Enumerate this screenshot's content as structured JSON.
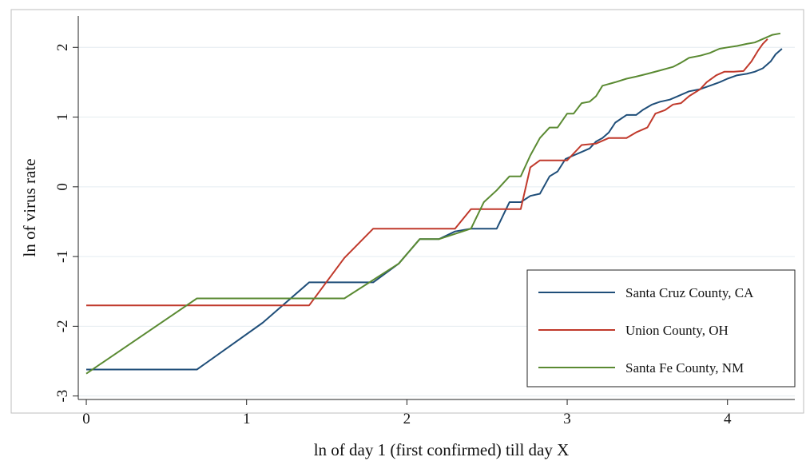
{
  "chart_data": {
    "type": "line",
    "title": "",
    "xlabel": "ln of day 1 (first confirmed) till day X",
    "ylabel": "ln of virus rate",
    "xlim": [
      -0.05,
      4.42
    ],
    "ylim": [
      -3.05,
      2.45
    ],
    "xticks": [
      0,
      1,
      2,
      3,
      4
    ],
    "yticks": [
      -3,
      -2,
      -1,
      0,
      1,
      2
    ],
    "grid": "horizontal",
    "legend": "bottom-right",
    "series": [
      {
        "name": "Santa Cruz County, CA",
        "color": "#1f4e79",
        "points": [
          [
            0,
            -2.62
          ],
          [
            0.69,
            -2.62
          ],
          [
            1.1,
            -1.95
          ],
          [
            1.39,
            -1.37
          ],
          [
            1.79,
            -1.37
          ],
          [
            1.95,
            -1.1
          ],
          [
            2.08,
            -0.75
          ],
          [
            2.2,
            -0.75
          ],
          [
            2.3,
            -0.64
          ],
          [
            2.4,
            -0.6
          ],
          [
            2.56,
            -0.6
          ],
          [
            2.64,
            -0.22
          ],
          [
            2.71,
            -0.22
          ],
          [
            2.77,
            -0.13
          ],
          [
            2.83,
            -0.1
          ],
          [
            2.89,
            0.15
          ],
          [
            2.94,
            0.22
          ],
          [
            2.99,
            0.4
          ],
          [
            3.04,
            0.45
          ],
          [
            3.09,
            0.5
          ],
          [
            3.14,
            0.55
          ],
          [
            3.18,
            0.65
          ],
          [
            3.22,
            0.7
          ],
          [
            3.26,
            0.78
          ],
          [
            3.3,
            0.92
          ],
          [
            3.37,
            1.03
          ],
          [
            3.43,
            1.03
          ],
          [
            3.47,
            1.1
          ],
          [
            3.53,
            1.18
          ],
          [
            3.58,
            1.22
          ],
          [
            3.64,
            1.25
          ],
          [
            3.69,
            1.3
          ],
          [
            3.76,
            1.37
          ],
          [
            3.83,
            1.4
          ],
          [
            3.89,
            1.45
          ],
          [
            3.95,
            1.5
          ],
          [
            4.0,
            1.55
          ],
          [
            4.06,
            1.6
          ],
          [
            4.12,
            1.62
          ],
          [
            4.17,
            1.65
          ],
          [
            4.22,
            1.7
          ],
          [
            4.27,
            1.8
          ],
          [
            4.3,
            1.9
          ],
          [
            4.34,
            1.98
          ]
        ]
      },
      {
        "name": "Union County, OH",
        "color": "#c0392b",
        "points": [
          [
            0,
            -1.7
          ],
          [
            1.39,
            -1.7
          ],
          [
            1.61,
            -1.02
          ],
          [
            1.79,
            -0.6
          ],
          [
            2.3,
            -0.6
          ],
          [
            2.4,
            -0.32
          ],
          [
            2.71,
            -0.32
          ],
          [
            2.77,
            0.28
          ],
          [
            2.83,
            0.38
          ],
          [
            3.0,
            0.38
          ],
          [
            3.09,
            0.6
          ],
          [
            3.18,
            0.62
          ],
          [
            3.26,
            0.7
          ],
          [
            3.37,
            0.7
          ],
          [
            3.43,
            0.78
          ],
          [
            3.5,
            0.85
          ],
          [
            3.55,
            1.05
          ],
          [
            3.61,
            1.1
          ],
          [
            3.66,
            1.18
          ],
          [
            3.71,
            1.2
          ],
          [
            3.76,
            1.3
          ],
          [
            3.83,
            1.4
          ],
          [
            3.87,
            1.5
          ],
          [
            3.93,
            1.6
          ],
          [
            3.98,
            1.65
          ],
          [
            4.04,
            1.65
          ],
          [
            4.1,
            1.66
          ],
          [
            4.15,
            1.8
          ],
          [
            4.19,
            1.95
          ],
          [
            4.22,
            2.05
          ],
          [
            4.25,
            2.12
          ]
        ]
      },
      {
        "name": "Santa Fe County, NM",
        "color": "#5a8a32",
        "points": [
          [
            0,
            -2.68
          ],
          [
            0.69,
            -1.6
          ],
          [
            1.61,
            -1.6
          ],
          [
            1.95,
            -1.1
          ],
          [
            2.08,
            -0.75
          ],
          [
            2.2,
            -0.75
          ],
          [
            2.4,
            -0.6
          ],
          [
            2.48,
            -0.22
          ],
          [
            2.56,
            -0.05
          ],
          [
            2.64,
            0.15
          ],
          [
            2.71,
            0.15
          ],
          [
            2.77,
            0.45
          ],
          [
            2.83,
            0.7
          ],
          [
            2.89,
            0.85
          ],
          [
            2.94,
            0.85
          ],
          [
            3.0,
            1.05
          ],
          [
            3.04,
            1.05
          ],
          [
            3.09,
            1.2
          ],
          [
            3.14,
            1.22
          ],
          [
            3.18,
            1.3
          ],
          [
            3.22,
            1.45
          ],
          [
            3.3,
            1.5
          ],
          [
            3.37,
            1.55
          ],
          [
            3.43,
            1.58
          ],
          [
            3.5,
            1.62
          ],
          [
            3.58,
            1.67
          ],
          [
            3.66,
            1.72
          ],
          [
            3.71,
            1.78
          ],
          [
            3.76,
            1.85
          ],
          [
            3.83,
            1.88
          ],
          [
            3.89,
            1.92
          ],
          [
            3.95,
            1.98
          ],
          [
            4.0,
            2.0
          ],
          [
            4.06,
            2.02
          ],
          [
            4.12,
            2.05
          ],
          [
            4.17,
            2.07
          ],
          [
            4.22,
            2.12
          ],
          [
            4.28,
            2.18
          ],
          [
            4.33,
            2.2
          ]
        ]
      }
    ]
  }
}
